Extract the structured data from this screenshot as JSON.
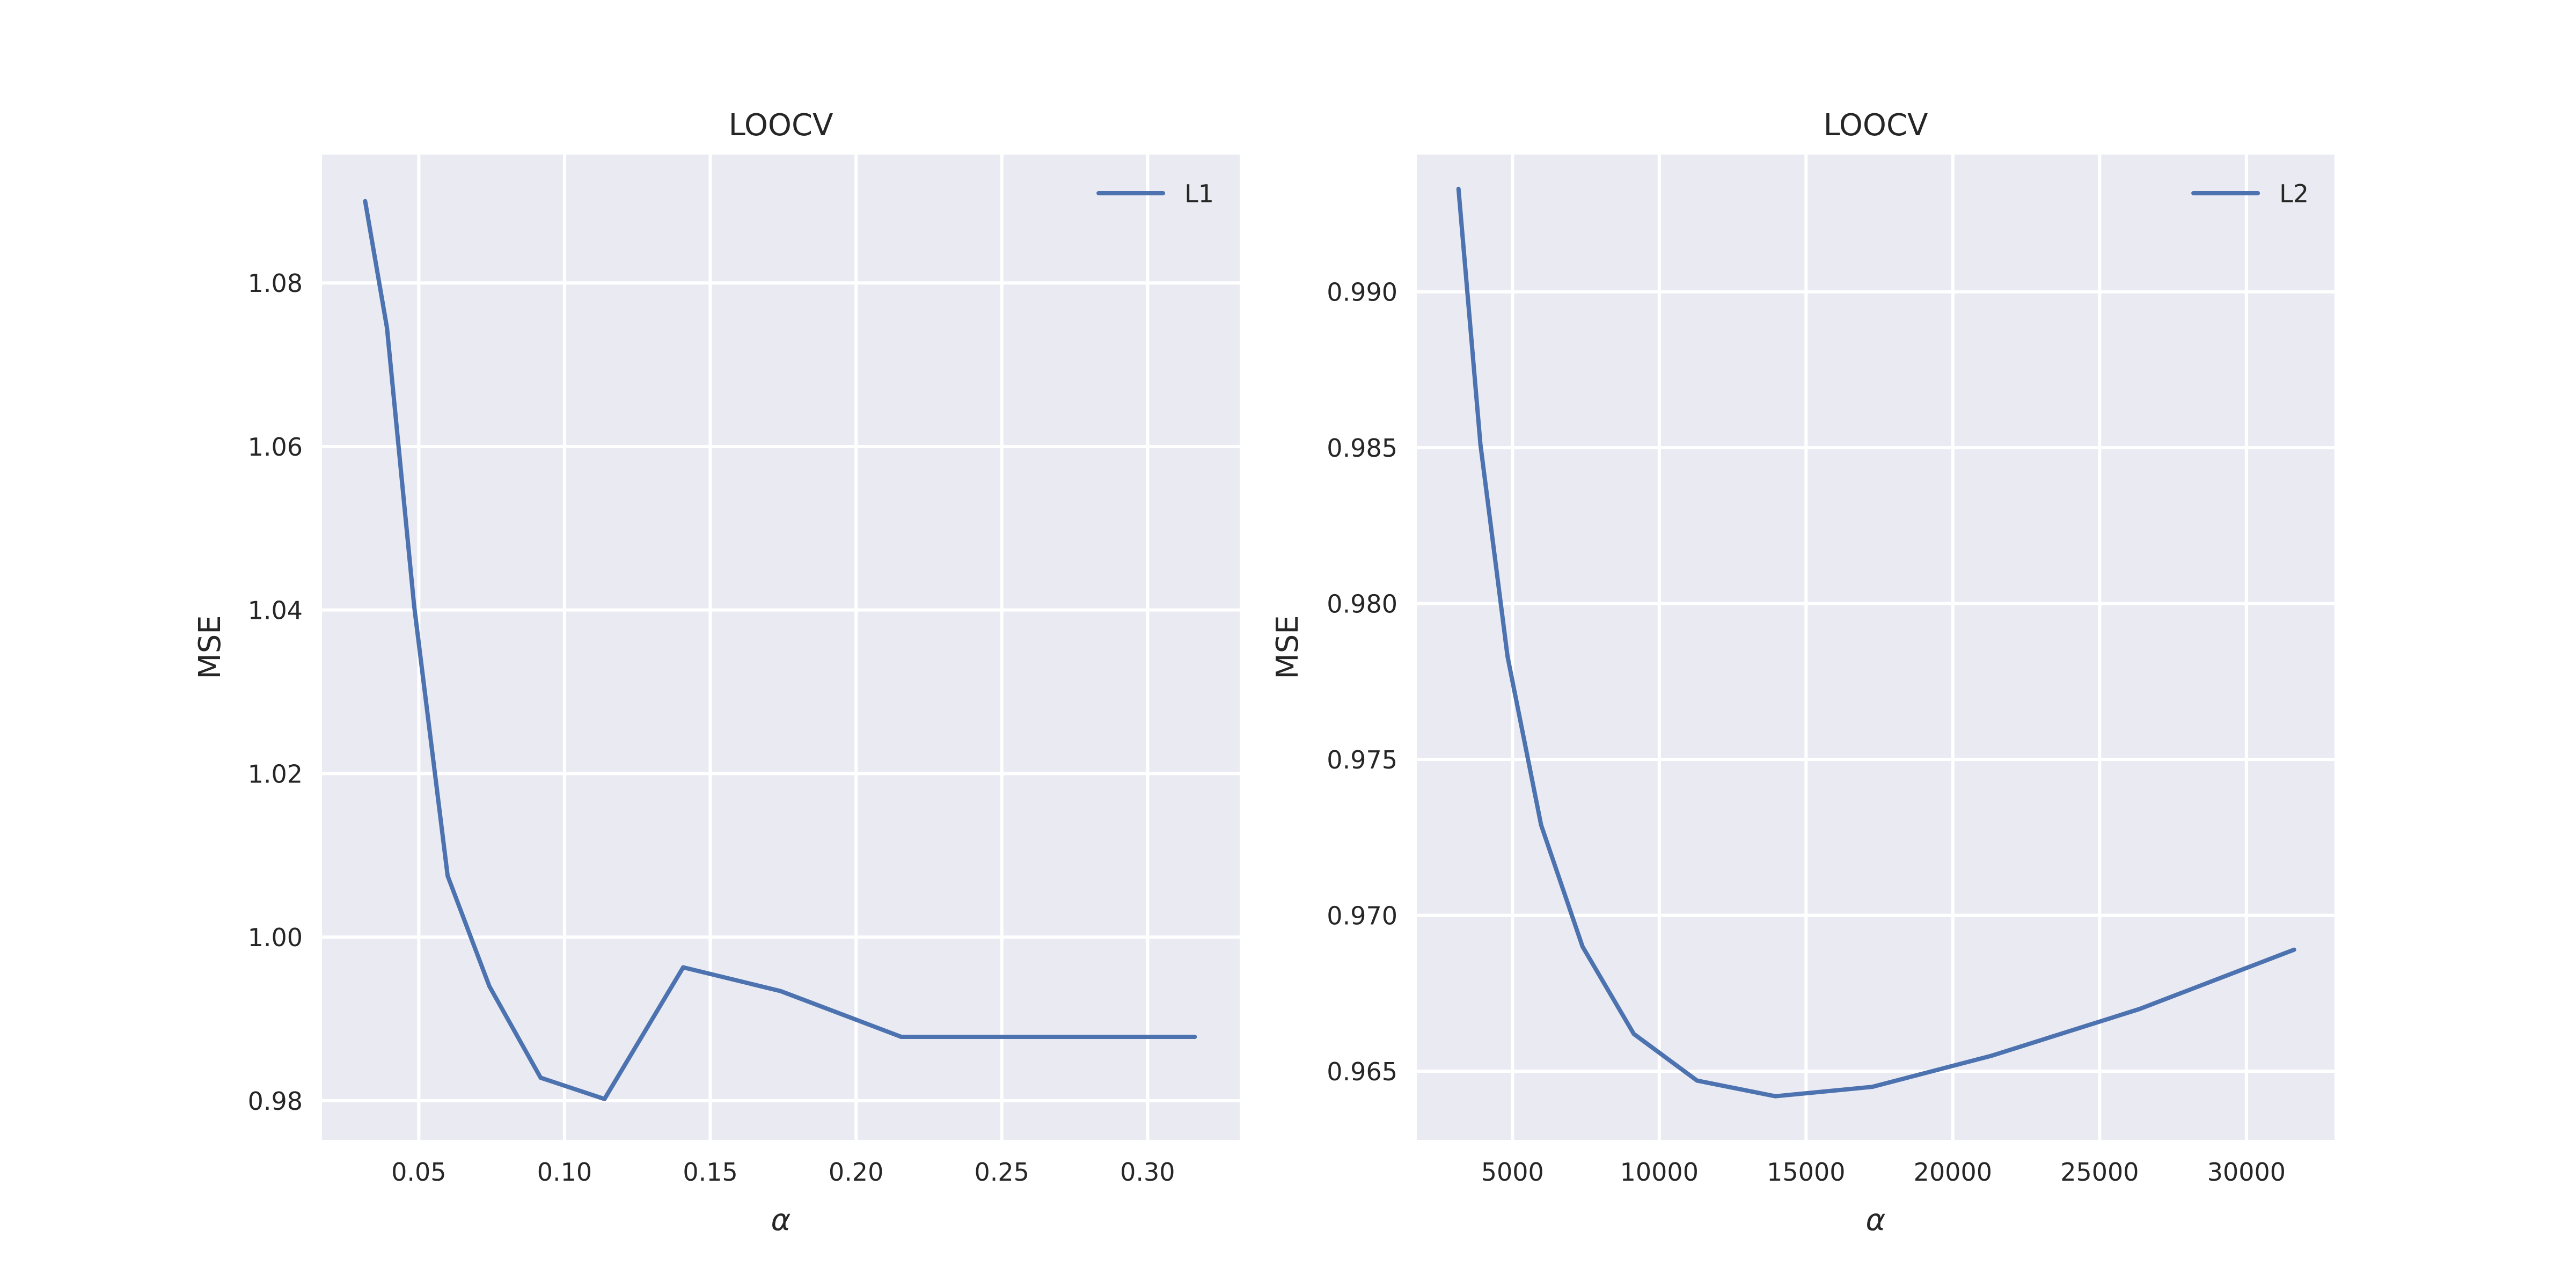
{
  "figure": {
    "background": "#ffffff",
    "plot_background": "#eaeaf2",
    "grid_color": "#ffffff",
    "line_color": "#4c72b0"
  },
  "chart_data": [
    {
      "type": "line",
      "title": "LOOCV",
      "xlabel": "α",
      "ylabel": "MSE",
      "xlim": [
        0.0168,
        0.3316
      ],
      "ylim": [
        0.9752,
        1.0957
      ],
      "xticks": [
        0.05,
        0.1,
        0.15,
        0.2,
        0.25,
        0.3
      ],
      "xtick_labels": [
        "0.05",
        "0.10",
        "0.15",
        "0.20",
        "0.25",
        "0.30"
      ],
      "yticks": [
        0.98,
        1.0,
        1.02,
        1.04,
        1.06,
        1.08
      ],
      "ytick_labels": [
        "0.98",
        "1.00",
        "1.02",
        "1.04",
        "1.06",
        "1.08"
      ],
      "grid": true,
      "legend_position": "top-right",
      "series": [
        {
          "name": "L1",
          "color": "#4c72b0",
          "x": [
            0.0316,
            0.0391,
            0.0484,
            0.0599,
            0.0742,
            0.0918,
            0.1137,
            0.1407,
            0.1741,
            0.2155,
            0.2667,
            0.3162
          ],
          "y": [
            1.09,
            1.0745,
            1.0405,
            1.0075,
            0.994,
            0.9828,
            0.9802,
            0.9963,
            0.9934,
            0.9878,
            0.9878,
            0.9878
          ]
        }
      ]
    },
    {
      "type": "line",
      "title": "LOOCV",
      "xlabel": "α",
      "ylabel": "MSE",
      "xlim": [
        1741,
        33000
      ],
      "ylim": [
        0.9628,
        0.9944
      ],
      "xticks": [
        5000,
        10000,
        15000,
        20000,
        25000,
        30000
      ],
      "xtick_labels": [
        "5000",
        "10000",
        "15000",
        "20000",
        "25000",
        "30000"
      ],
      "yticks": [
        0.965,
        0.97,
        0.975,
        0.98,
        0.985,
        0.99
      ],
      "ytick_labels": [
        "0.965",
        "0.970",
        "0.975",
        "0.980",
        "0.985",
        "0.990"
      ],
      "grid": true,
      "legend_position": "top-right",
      "series": [
        {
          "name": "L2",
          "color": "#4c72b0",
          "x": [
            3162,
            3909,
            4832,
            5974,
            7386,
            9131,
            11288,
            13955,
            17252,
            21328,
            26367,
            31623
          ],
          "y": [
            0.9933,
            0.9851,
            0.9783,
            0.9729,
            0.969,
            0.9662,
            0.9647,
            0.9642,
            0.9645,
            0.9655,
            0.967,
            0.9689
          ]
        }
      ]
    }
  ]
}
